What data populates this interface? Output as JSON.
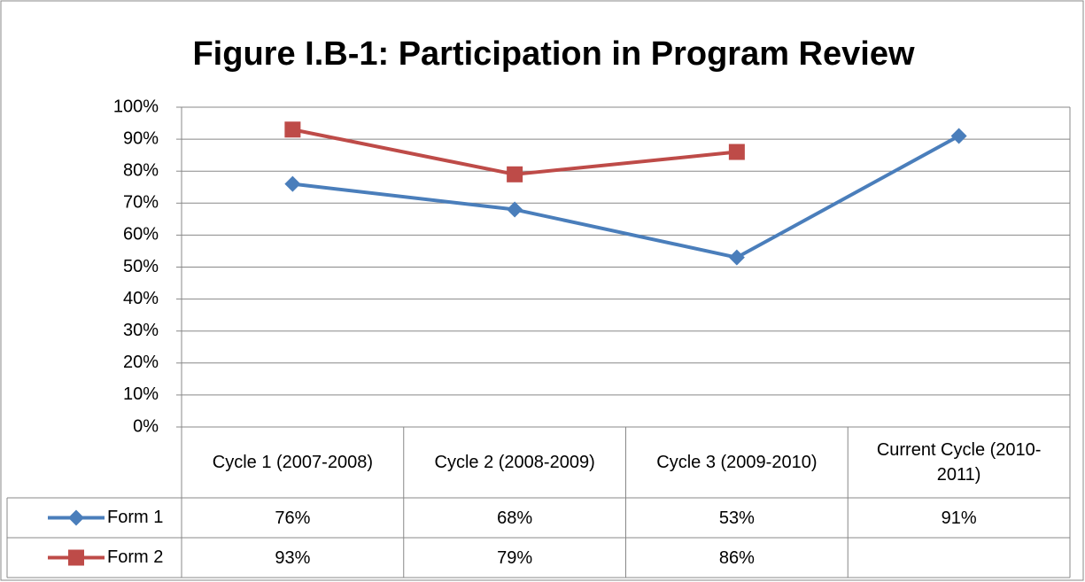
{
  "chart_data": {
    "type": "line",
    "title": "Figure I.B-1:  Participation in Program Review",
    "categories": [
      "Cycle 1 (2007-2008)",
      "Cycle 2 (2008-2009)",
      "Cycle 3 (2009-2010)",
      "Current Cycle (2010-2011)"
    ],
    "series": [
      {
        "name": "Form 1",
        "color": "#4a7ebb",
        "marker": "diamond",
        "values": [
          76,
          68,
          53,
          91
        ],
        "value_labels": [
          "76%",
          "68%",
          "53%",
          "91%"
        ]
      },
      {
        "name": "Form 2",
        "color": "#be4b48",
        "marker": "square",
        "values": [
          93,
          79,
          86,
          null
        ],
        "value_labels": [
          "93%",
          "79%",
          "86%",
          null
        ]
      }
    ],
    "ylim": [
      0,
      100
    ],
    "yticks": [
      {
        "value": 0,
        "label": "0%"
      },
      {
        "value": 10,
        "label": "10%"
      },
      {
        "value": 20,
        "label": "20%"
      },
      {
        "value": 30,
        "label": "30%"
      },
      {
        "value": 40,
        "label": "40%"
      },
      {
        "value": 50,
        "label": "50%"
      },
      {
        "value": 60,
        "label": "60%"
      },
      {
        "value": 70,
        "label": "70%"
      },
      {
        "value": 80,
        "label": "80%"
      },
      {
        "value": 90,
        "label": "90%"
      },
      {
        "value": 100,
        "label": "100%"
      }
    ],
    "grid": true,
    "data_table": true
  }
}
